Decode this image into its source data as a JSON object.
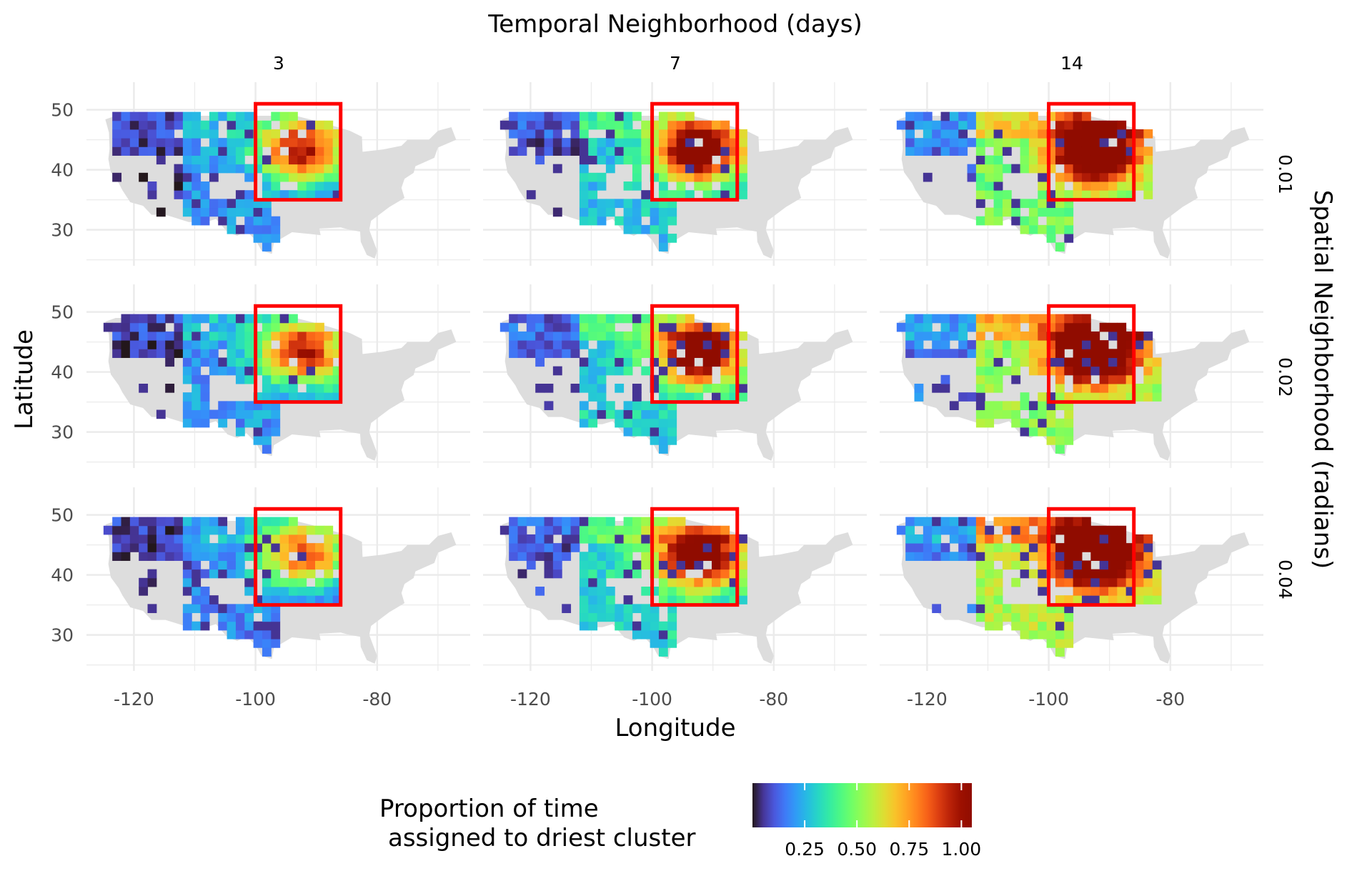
{
  "chart_data": {
    "type": "heatmap",
    "title": "Temporal Neighborhood (days)",
    "right_label": "Spatial Neighborhood (radians)",
    "xlabel": "Longitude",
    "ylabel": "Latitude",
    "column_facets": [
      "3",
      "7",
      "14"
    ],
    "row_facets": [
      "0.01",
      "0.02",
      "0.04"
    ],
    "x_ticks": [
      "-120",
      "-100",
      "-80"
    ],
    "x_tick_values": [
      -120,
      -100,
      -80
    ],
    "y_ticks": [
      "50",
      "40",
      "30"
    ],
    "y_tick_values": [
      50,
      40,
      30
    ],
    "xlim": [
      -127.8,
      -64.7
    ],
    "ylim": [
      24.0,
      54.6
    ],
    "grid": true,
    "highlight_box": {
      "lon": [
        -100,
        -86
      ],
      "lat": [
        35,
        51
      ],
      "color": "#ff0000"
    },
    "panels": [
      {
        "temporal": "3",
        "spatial": "0.01",
        "peak": 0.8,
        "base": 0.25
      },
      {
        "temporal": "7",
        "spatial": "0.01",
        "peak": 1.0,
        "base": 0.35
      },
      {
        "temporal": "14",
        "spatial": "0.01",
        "peak": 1.0,
        "base": 0.6
      },
      {
        "temporal": "3",
        "spatial": "0.02",
        "peak": 0.78,
        "base": 0.25
      },
      {
        "temporal": "7",
        "spatial": "0.02",
        "peak": 0.95,
        "base": 0.38
      },
      {
        "temporal": "14",
        "spatial": "0.02",
        "peak": 1.0,
        "base": 0.65
      },
      {
        "temporal": "3",
        "spatial": "0.04",
        "peak": 0.72,
        "base": 0.22
      },
      {
        "temporal": "7",
        "spatial": "0.04",
        "peak": 0.95,
        "base": 0.4
      },
      {
        "temporal": "14",
        "spatial": "0.04",
        "peak": 1.0,
        "base": 0.7
      }
    ],
    "legend": {
      "title_line1": "Proportion of time",
      "title_line2": "assigned to driest cluster",
      "placement": "bottom",
      "range": [
        0.0,
        1.05
      ],
      "tick_labels": [
        "0.25",
        "0.50",
        "0.75",
        "1.00"
      ],
      "tick_values": [
        0.25,
        0.5,
        0.75,
        1.0
      ],
      "colormap": "turbo"
    },
    "land_color": "#dddddd",
    "grid_color": "#ebebeb"
  }
}
